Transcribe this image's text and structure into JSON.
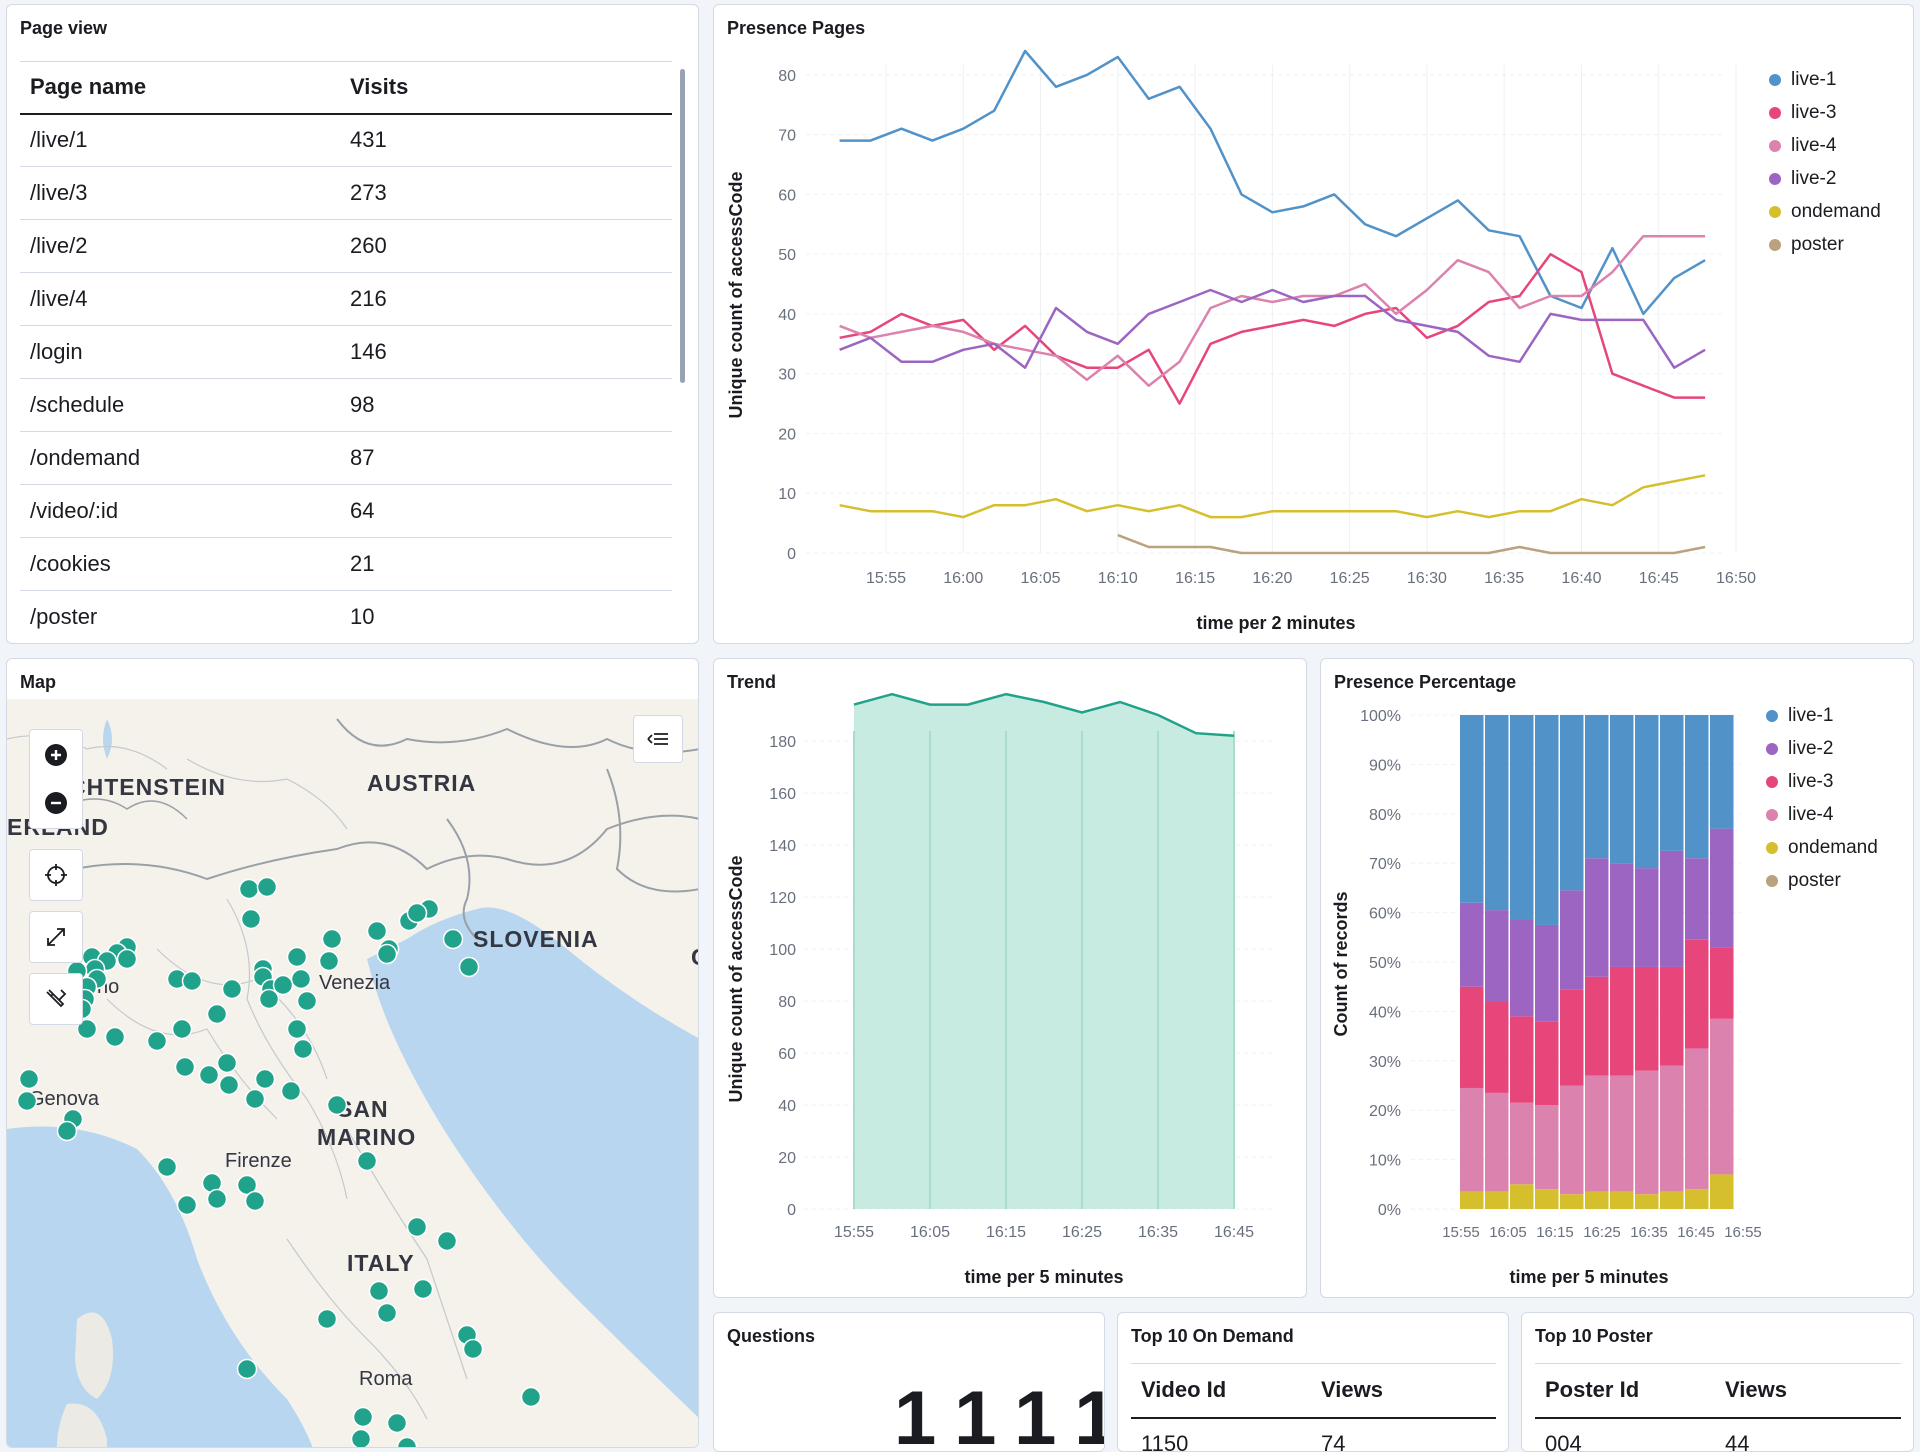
{
  "page_view": {
    "title": "Page view",
    "columns": [
      "Page name",
      "Visits"
    ],
    "rows": [
      [
        "/live/1",
        "431"
      ],
      [
        "/live/3",
        "273"
      ],
      [
        "/live/2",
        "260"
      ],
      [
        "/live/4",
        "216"
      ],
      [
        "/login",
        "146"
      ],
      [
        "/schedule",
        "98"
      ],
      [
        "/ondemand",
        "87"
      ],
      [
        "/video/:id",
        "64"
      ],
      [
        "/cookies",
        "21"
      ],
      [
        "/poster",
        "10"
      ]
    ]
  },
  "presence_pages": {
    "title": "Presence Pages",
    "legend": [
      {
        "name": "live-1",
        "color": "#5192c8"
      },
      {
        "name": "live-3",
        "color": "#e7467a"
      },
      {
        "name": "live-4",
        "color": "#dc82ae"
      },
      {
        "name": "live-2",
        "color": "#9d65c2"
      },
      {
        "name": "ondemand",
        "color": "#d6bf2c"
      },
      {
        "name": "poster",
        "color": "#b9a27d"
      }
    ]
  },
  "map": {
    "title": "Map",
    "labels": [
      {
        "text": "CHTENSTEIN",
        "kind": "country"
      },
      {
        "text": "AUSTRIA",
        "kind": "country"
      },
      {
        "text": "ERLAND",
        "kind": "country"
      },
      {
        "text": "SLOVENIA",
        "kind": "country"
      },
      {
        "text": "SAN",
        "kind": "country"
      },
      {
        "text": "MARINO",
        "kind": "country"
      },
      {
        "text": "ITALY",
        "kind": "country"
      },
      {
        "text": "Venezia",
        "kind": "city"
      },
      {
        "text": "Genova",
        "kind": "city"
      },
      {
        "text": "Firenze",
        "kind": "city"
      },
      {
        "text": "Roma",
        "kind": "city"
      },
      {
        "text": "no",
        "kind": "city"
      },
      {
        "text": "C",
        "kind": "country"
      }
    ],
    "controls": [
      "zoom-in",
      "zoom-out",
      "locate",
      "fullscreen",
      "draw-tools"
    ]
  },
  "trend": {
    "title": "Trend"
  },
  "presence_percentage": {
    "title": "Presence Percentage",
    "legend": [
      {
        "name": "live-1",
        "color": "#5192c8"
      },
      {
        "name": "live-2",
        "color": "#9d65c2"
      },
      {
        "name": "live-3",
        "color": "#e7467a"
      },
      {
        "name": "live-4",
        "color": "#dc82ae"
      },
      {
        "name": "ondemand",
        "color": "#d6bf2c"
      },
      {
        "name": "poster",
        "color": "#b9a27d"
      }
    ]
  },
  "questions": {
    "title": "Questions",
    "value": "1111"
  },
  "top_on_demand": {
    "title": "Top 10 On Demand",
    "columns": [
      "Video Id",
      "Views"
    ],
    "partial_row": [
      "1150",
      "74"
    ]
  },
  "top_poster": {
    "title": "Top 10 Poster",
    "columns": [
      "Poster Id",
      "Views"
    ],
    "partial_row": [
      "004",
      "44"
    ]
  },
  "chart_data": [
    {
      "type": "line",
      "title": "Presence Pages",
      "xlabel": "time per 2 minutes",
      "ylabel": "Unique count of accessCode",
      "ylim": [
        0,
        85
      ],
      "yticks": [
        0,
        10,
        20,
        30,
        40,
        50,
        60,
        70,
        80
      ],
      "xticks": [
        "15:55",
        "16:00",
        "16:05",
        "16:10",
        "16:15",
        "16:20",
        "16:25",
        "16:30",
        "16:35",
        "16:40",
        "16:45",
        "16:50"
      ],
      "x_minutes_start": "15:52",
      "x_step_minutes": 2,
      "grid": true,
      "legend_position": "right",
      "series": [
        {
          "name": "live-1",
          "color": "#5192c8",
          "start": 0,
          "values": [
            69,
            69,
            71,
            69,
            71,
            74,
            84,
            78,
            80,
            83,
            76,
            78,
            71,
            60,
            57,
            58,
            60,
            55,
            53,
            56,
            59,
            54,
            53,
            43,
            41,
            51,
            40,
            46,
            49
          ]
        },
        {
          "name": "live-3",
          "color": "#e7467a",
          "start": 0,
          "values": [
            36,
            37,
            40,
            38,
            39,
            34,
            38,
            33,
            31,
            31,
            34,
            25,
            35,
            37,
            38,
            39,
            38,
            40,
            41,
            36,
            38,
            42,
            43,
            50,
            47,
            30,
            28,
            26,
            26
          ]
        },
        {
          "name": "live-4",
          "color": "#dc82ae",
          "start": 0,
          "values": [
            38,
            36,
            37,
            38,
            37,
            35,
            34,
            33,
            29,
            33,
            28,
            32,
            41,
            43,
            42,
            43,
            43,
            45,
            40,
            44,
            49,
            47,
            41,
            43,
            43,
            47,
            53,
            53,
            53
          ]
        },
        {
          "name": "live-2",
          "color": "#9d65c2",
          "start": 0,
          "values": [
            34,
            36,
            32,
            32,
            34,
            35,
            31,
            41,
            37,
            35,
            40,
            42,
            44,
            42,
            44,
            42,
            43,
            43,
            39,
            38,
            37,
            33,
            32,
            40,
            39,
            39,
            39,
            31,
            34
          ]
        },
        {
          "name": "ondemand",
          "color": "#d6bf2c",
          "start": 0,
          "values": [
            8,
            7,
            7,
            7,
            6,
            8,
            8,
            9,
            7,
            8,
            7,
            8,
            6,
            6,
            7,
            7,
            7,
            7,
            7,
            6,
            7,
            6,
            7,
            7,
            9,
            8,
            11,
            12,
            13
          ]
        },
        {
          "name": "poster",
          "color": "#b9a27d",
          "start": 9,
          "values": [
            3,
            1,
            1,
            1,
            0,
            0,
            0,
            0,
            0,
            0,
            0,
            0,
            0,
            1,
            0,
            0,
            0,
            0,
            0,
            1
          ]
        }
      ]
    },
    {
      "type": "area",
      "title": "Trend",
      "xlabel": "time per 5 minutes",
      "ylabel": "Unique count of accessCode",
      "ylim": [
        0,
        190
      ],
      "yticks": [
        0,
        20,
        40,
        60,
        80,
        100,
        120,
        140,
        160,
        180
      ],
      "xticks": [
        "15:55",
        "16:05",
        "16:15",
        "16:25",
        "16:35",
        "16:45"
      ],
      "x": [
        "15:55",
        "16:00",
        "16:05",
        "16:10",
        "16:15",
        "16:20",
        "16:25",
        "16:30",
        "16:35",
        "16:40",
        "16:45"
      ],
      "color": "#21a28a",
      "series": [
        {
          "values": [
            194,
            198,
            194,
            194,
            198,
            195,
            191,
            195,
            190,
            183,
            182
          ]
        }
      ]
    },
    {
      "type": "bar",
      "stacked": "percentage",
      "title": "Presence Percentage",
      "xlabel": "time per 5 minutes",
      "ylabel": "Count of records",
      "ylim": [
        0,
        100
      ],
      "yticks": [
        "0%",
        "10%",
        "20%",
        "30%",
        "40%",
        "50%",
        "60%",
        "70%",
        "80%",
        "90%",
        "100%"
      ],
      "xticks": [
        "15:55",
        "16:05",
        "16:15",
        "16:25",
        "16:35",
        "16:45",
        "16:55"
      ],
      "categories": [
        "15:55",
        "16:00",
        "16:05",
        "16:10",
        "16:15",
        "16:20",
        "16:25",
        "16:30",
        "16:35",
        "16:40",
        "16:45"
      ],
      "series": [
        {
          "name": "ondemand",
          "color": "#d6bf2c",
          "values": [
            3.5,
            3.5,
            5,
            4,
            3,
            3.5,
            3.5,
            3,
            3.5,
            4,
            7
          ]
        },
        {
          "name": "live-4",
          "color": "#dc82ae",
          "values": [
            21,
            20,
            16.5,
            17,
            22,
            23.5,
            23.5,
            25,
            25.5,
            28.5,
            31.5
          ]
        },
        {
          "name": "live-3",
          "color": "#e7467a",
          "values": [
            20.5,
            18.5,
            17.5,
            17,
            19.5,
            20,
            22,
            21,
            20,
            22,
            14.5
          ]
        },
        {
          "name": "live-2",
          "color": "#9d65c2",
          "values": [
            17,
            18.5,
            19.5,
            19.5,
            20,
            24,
            21,
            20,
            23.5,
            16.5,
            24
          ]
        },
        {
          "name": "live-1",
          "color": "#5192c8",
          "values": [
            38,
            39.5,
            41.5,
            42.5,
            35.5,
            29,
            30,
            31,
            27.5,
            29,
            23
          ]
        }
      ]
    }
  ]
}
